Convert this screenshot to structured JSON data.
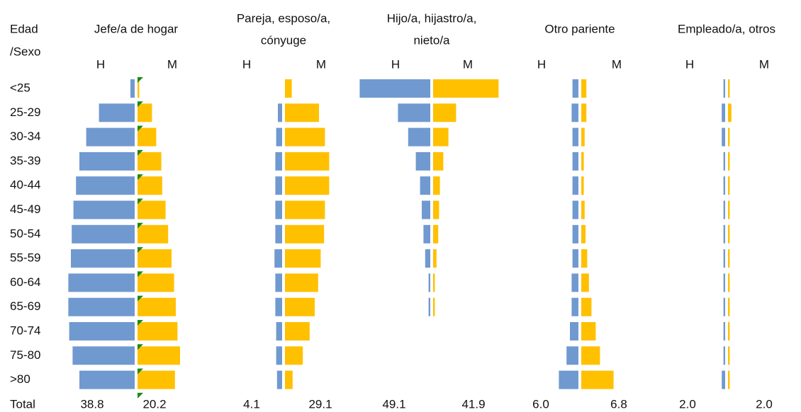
{
  "chart_data": {
    "type": "pyramid",
    "row_header": [
      "Edad",
      "/Sexo"
    ],
    "total_label": "Total",
    "categories": [
      "<25",
      "25-29",
      "30-34",
      "35-39",
      "40-44",
      "45-49",
      "50-54",
      "55-59",
      "60-64",
      "65-69",
      "70-74",
      "75-80",
      ">80"
    ],
    "panels": [
      {
        "title": [
          "Jefe/a de hogar"
        ],
        "series": [
          {
            "name": "H",
            "color": "#7099d0",
            "values": [
              5,
              42,
              57,
              65,
              69,
              72,
              74,
              75,
              78,
              78,
              77,
              73,
              65
            ],
            "total": 38.8
          },
          {
            "name": "M",
            "color": "#ffc000",
            "values": [
              2,
              17,
              22,
              28,
              29,
              33,
              36,
              40,
              43,
              45,
              47,
              50,
              44
            ],
            "total": 20.2
          }
        ]
      },
      {
        "title": [
          "Pareja, esposo/a,",
          "cónyuge"
        ],
        "series": [
          {
            "name": "H",
            "color": "#7099d0",
            "values": [
              0,
              5,
              7,
              8,
              8,
              8,
              8,
              9,
              8,
              8,
              7,
              7,
              6
            ],
            "total": 4.1
          },
          {
            "name": "M",
            "color": "#ffc000",
            "values": [
              8,
              40,
              47,
              52,
              52,
              47,
              46,
              42,
              39,
              35,
              29,
              21,
              9
            ],
            "total": 29.1
          }
        ]
      },
      {
        "title": [
          "Hijo/a, hijastro/a,",
          "nieto/a"
        ],
        "series": [
          {
            "name": "H",
            "color": "#7099d0",
            "values": [
              83,
              38,
              26,
              17,
              12,
              10,
              8,
              6,
              2,
              2,
              0,
              0,
              0
            ],
            "total": 49.1
          },
          {
            "name": "M",
            "color": "#ffc000",
            "values": [
              77,
              27,
              18,
              12,
              8,
              7,
              6,
              4,
              2,
              2,
              0,
              0,
              0
            ],
            "total": 41.9
          }
        ]
      },
      {
        "title": [
          "Otro pariente"
        ],
        "series": [
          {
            "name": "H",
            "color": "#7099d0",
            "values": [
              7,
              8,
              7,
              7,
              7,
              7,
              7,
              7,
              8,
              8,
              10,
              14,
              23
            ],
            "total": 6,
            "total_label": "6.0"
          },
          {
            "name": "M",
            "color": "#ffc000",
            "values": [
              6,
              6,
              4,
              3,
              3,
              4,
              5,
              7,
              9,
              12,
              17,
              22,
              38
            ],
            "total": 6.8
          }
        ]
      },
      {
        "title": [
          "Empleado/a, otros"
        ],
        "series": [
          {
            "name": "H",
            "color": "#7099d0",
            "values": [
              2,
              4,
              4,
              2,
              2,
              2,
              2,
              2,
              2,
              2,
              2,
              2,
              4
            ],
            "total": 2,
            "total_label": "2.0"
          },
          {
            "name": "M",
            "color": "#ffc000",
            "values": [
              2,
              4,
              2,
              2,
              2,
              2,
              2,
              2,
              2,
              2,
              2,
              2,
              2
            ],
            "total": 2,
            "total_label": "2.0"
          }
        ]
      }
    ]
  }
}
